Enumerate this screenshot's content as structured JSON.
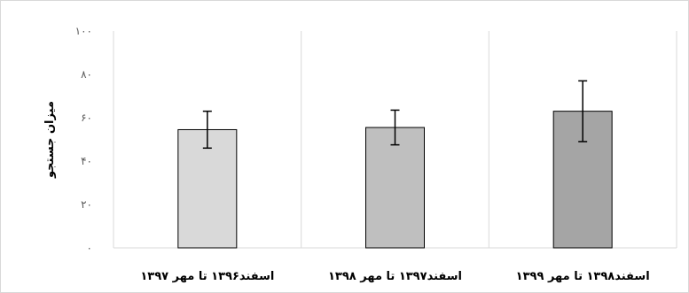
{
  "chart_data": {
    "type": "bar",
    "title": "",
    "xlabel": "",
    "ylabel": "میزان جستجو",
    "ylim": [
      0,
      100
    ],
    "yticks": [
      0,
      20,
      40,
      60,
      80,
      100
    ],
    "ytick_labels": [
      "۰",
      "۲۰",
      "۴۰",
      "۶۰",
      "۸۰",
      "۱۰۰"
    ],
    "categories": [
      "اسفند۱۳۹۶ تا مهر ۱۳۹۷",
      "اسفند۱۳۹۷ تا مهر ۱۳۹۸",
      "اسفند۱۳۹۸ تا مهر ۱۳۹۹"
    ],
    "values": [
      54.5,
      55.5,
      63
    ],
    "error_low": [
      46,
      47.5,
      49
    ],
    "error_high": [
      63,
      63.5,
      77
    ],
    "colors": [
      "#d9d9d9",
      "#bfbfbf",
      "#a5a5a5"
    ],
    "grid": "vertical separators between categories",
    "legend": "none"
  }
}
